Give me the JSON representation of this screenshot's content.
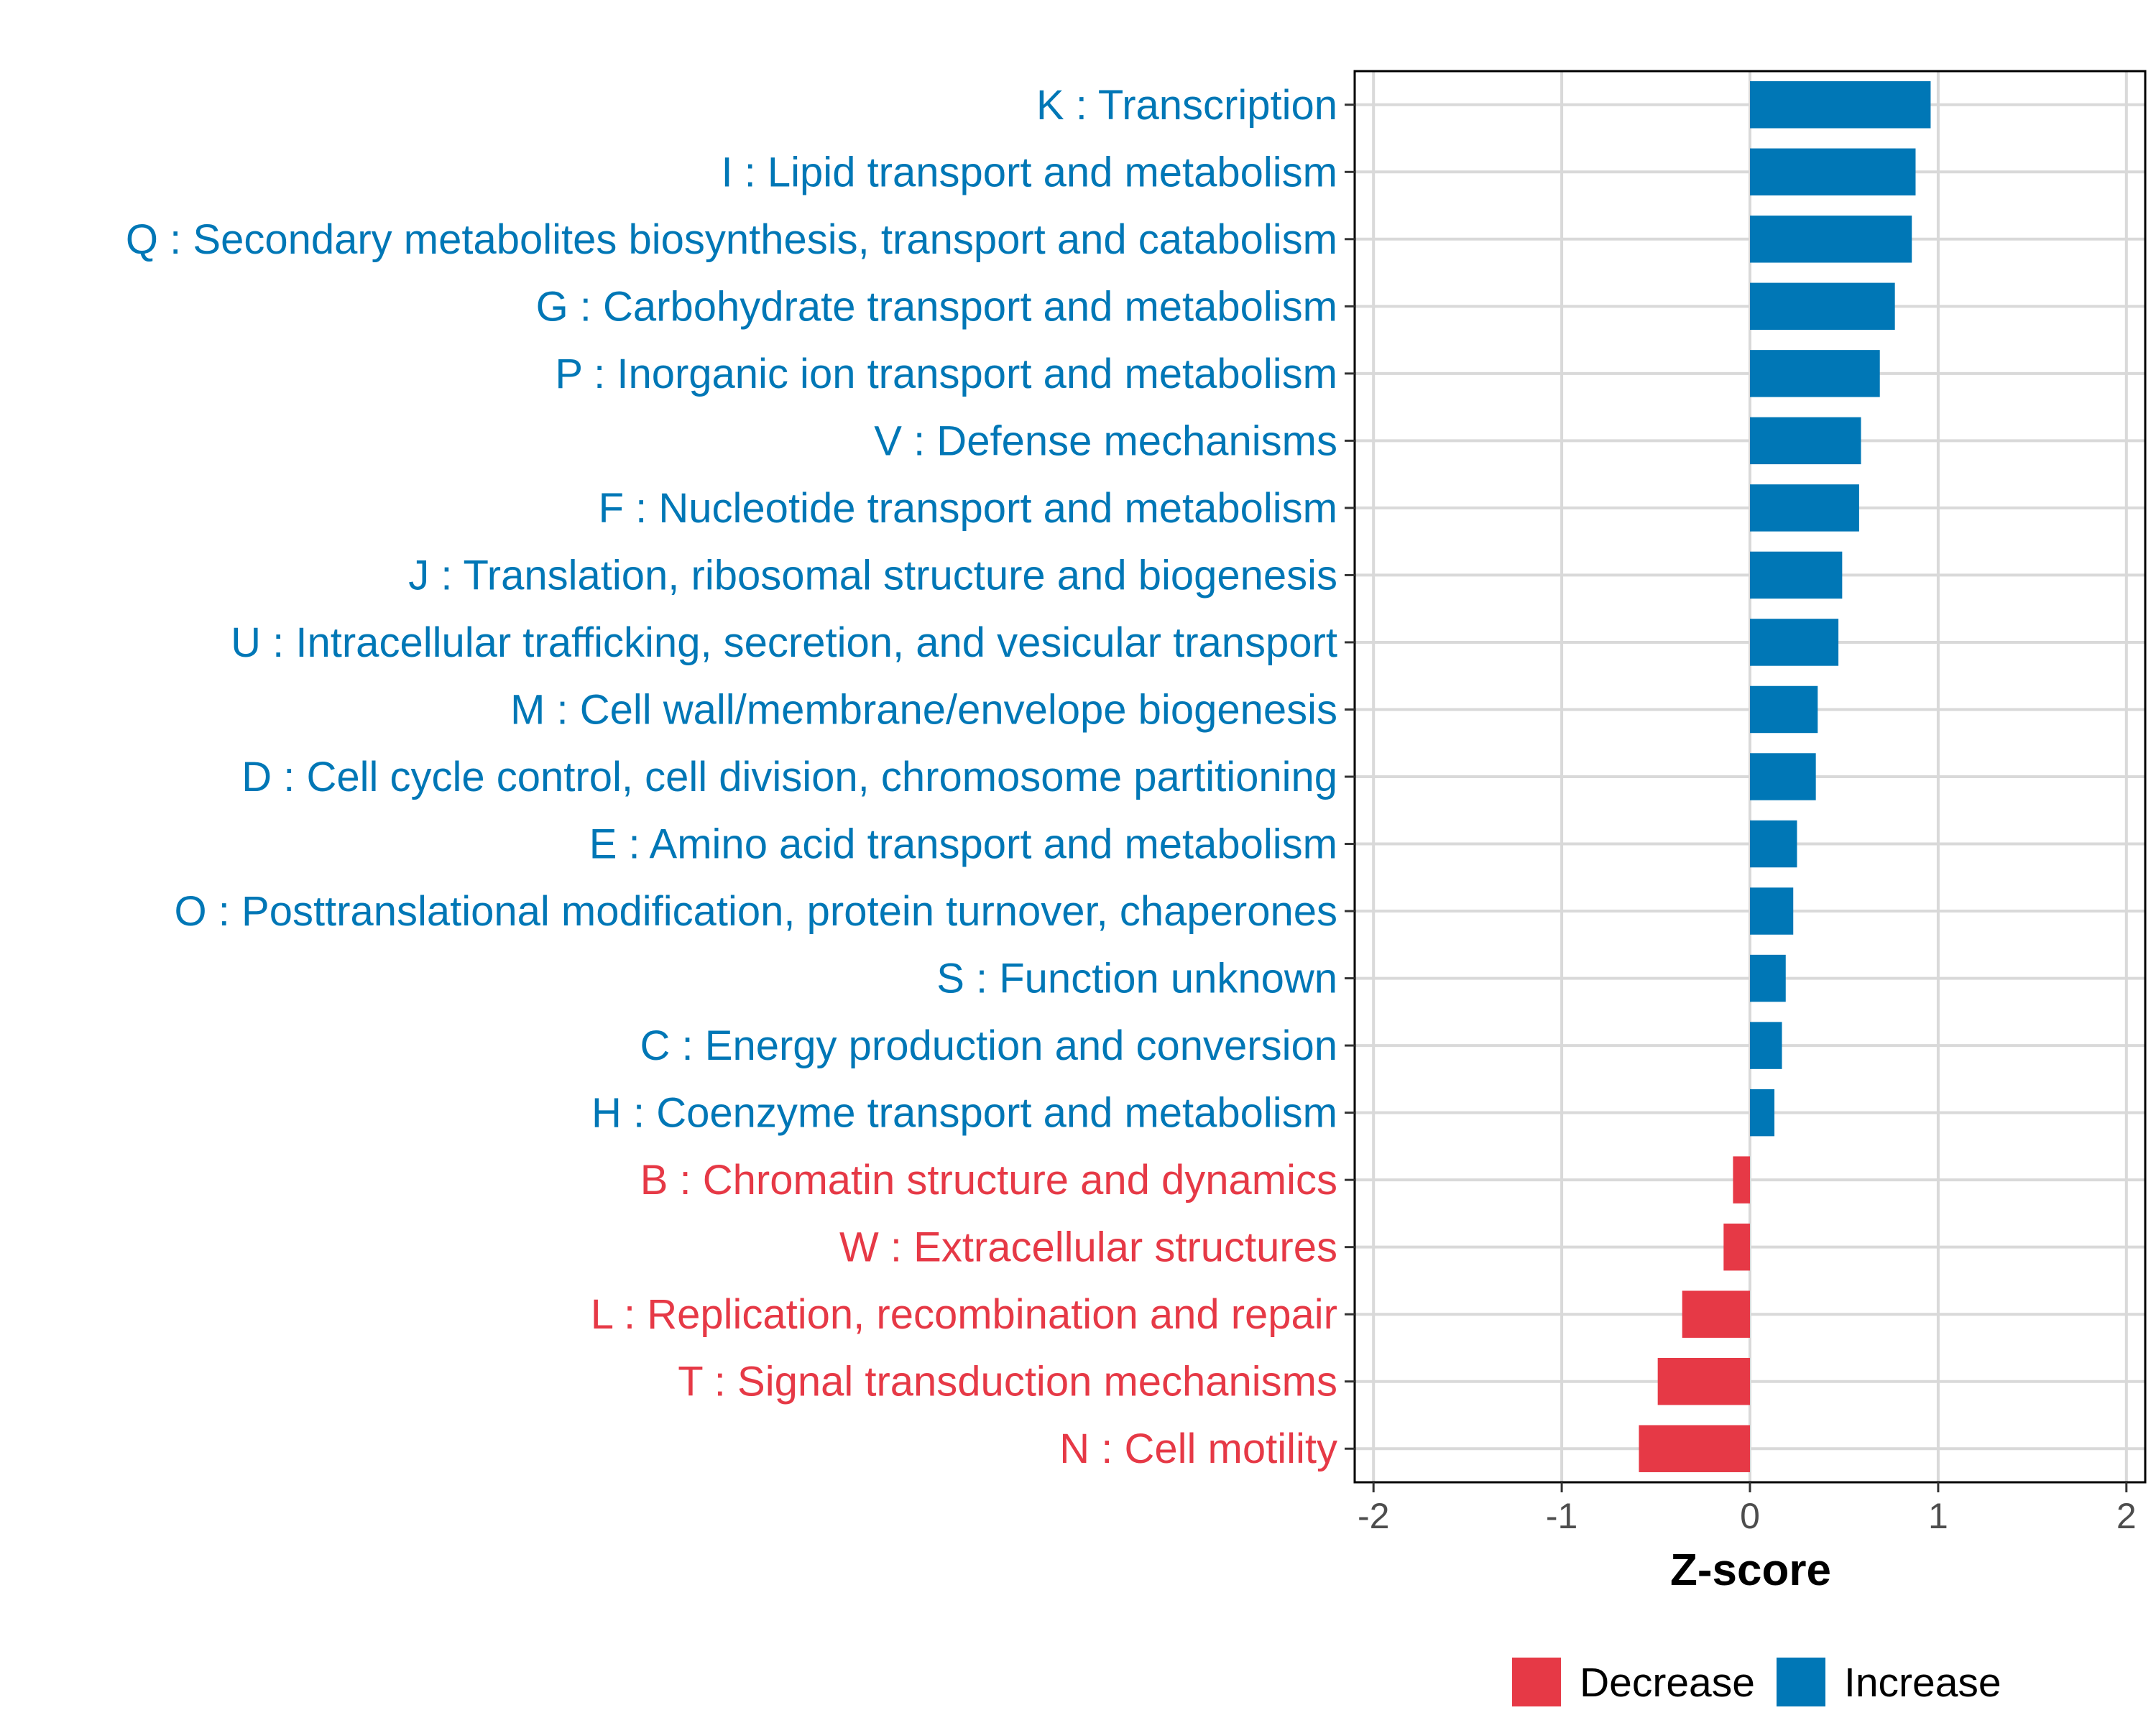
{
  "chart_data": {
    "type": "bar",
    "orientation": "horizontal",
    "xlabel": "Z-score",
    "ylabel": "",
    "xlim": [
      -2.1,
      2.1
    ],
    "xticks": [
      -2,
      -1,
      0,
      1,
      2
    ],
    "xtick_labels": [
      "-2",
      "-1",
      "0",
      "1",
      "2"
    ],
    "grid": true,
    "legend_position": "bottom",
    "colors": {
      "Decrease": "#E63946",
      "Increase": "#0077B6"
    },
    "legend": [
      {
        "label": "Decrease",
        "color": "#E63946"
      },
      {
        "label": "Increase",
        "color": "#0077B6"
      }
    ],
    "categories": [
      "K : Transcription",
      "I : Lipid transport and metabolism",
      "Q : Secondary metabolites biosynthesis, transport and catabolism",
      "G : Carbohydrate transport and metabolism",
      "P : Inorganic ion transport and metabolism",
      "V : Defense mechanisms",
      "F : Nucleotide transport and metabolism",
      "J : Translation, ribosomal structure and biogenesis",
      "U : Intracellular trafficking, secretion, and vesicular transport",
      "M : Cell wall/membrane/envelope biogenesis",
      "D : Cell cycle control, cell division, chromosome partitioning",
      "E : Amino acid transport and metabolism",
      "O : Posttranslational modification, protein turnover, chaperones",
      "S : Function unknown",
      "C : Energy production and conversion",
      "H : Coenzyme transport and metabolism",
      "B : Chromatin structure and dynamics",
      "W : Extracellular structures",
      "L : Replication, recombination and repair",
      "T : Signal transduction mechanisms",
      "N : Cell motility"
    ],
    "values": [
      0.96,
      0.88,
      0.86,
      0.77,
      0.69,
      0.59,
      0.58,
      0.49,
      0.47,
      0.36,
      0.35,
      0.25,
      0.23,
      0.19,
      0.17,
      0.13,
      -0.09,
      -0.14,
      -0.36,
      -0.49,
      -0.59
    ],
    "groups": [
      "Increase",
      "Increase",
      "Increase",
      "Increase",
      "Increase",
      "Increase",
      "Increase",
      "Increase",
      "Increase",
      "Increase",
      "Increase",
      "Increase",
      "Increase",
      "Increase",
      "Increase",
      "Increase",
      "Decrease",
      "Decrease",
      "Decrease",
      "Decrease",
      "Decrease"
    ]
  }
}
